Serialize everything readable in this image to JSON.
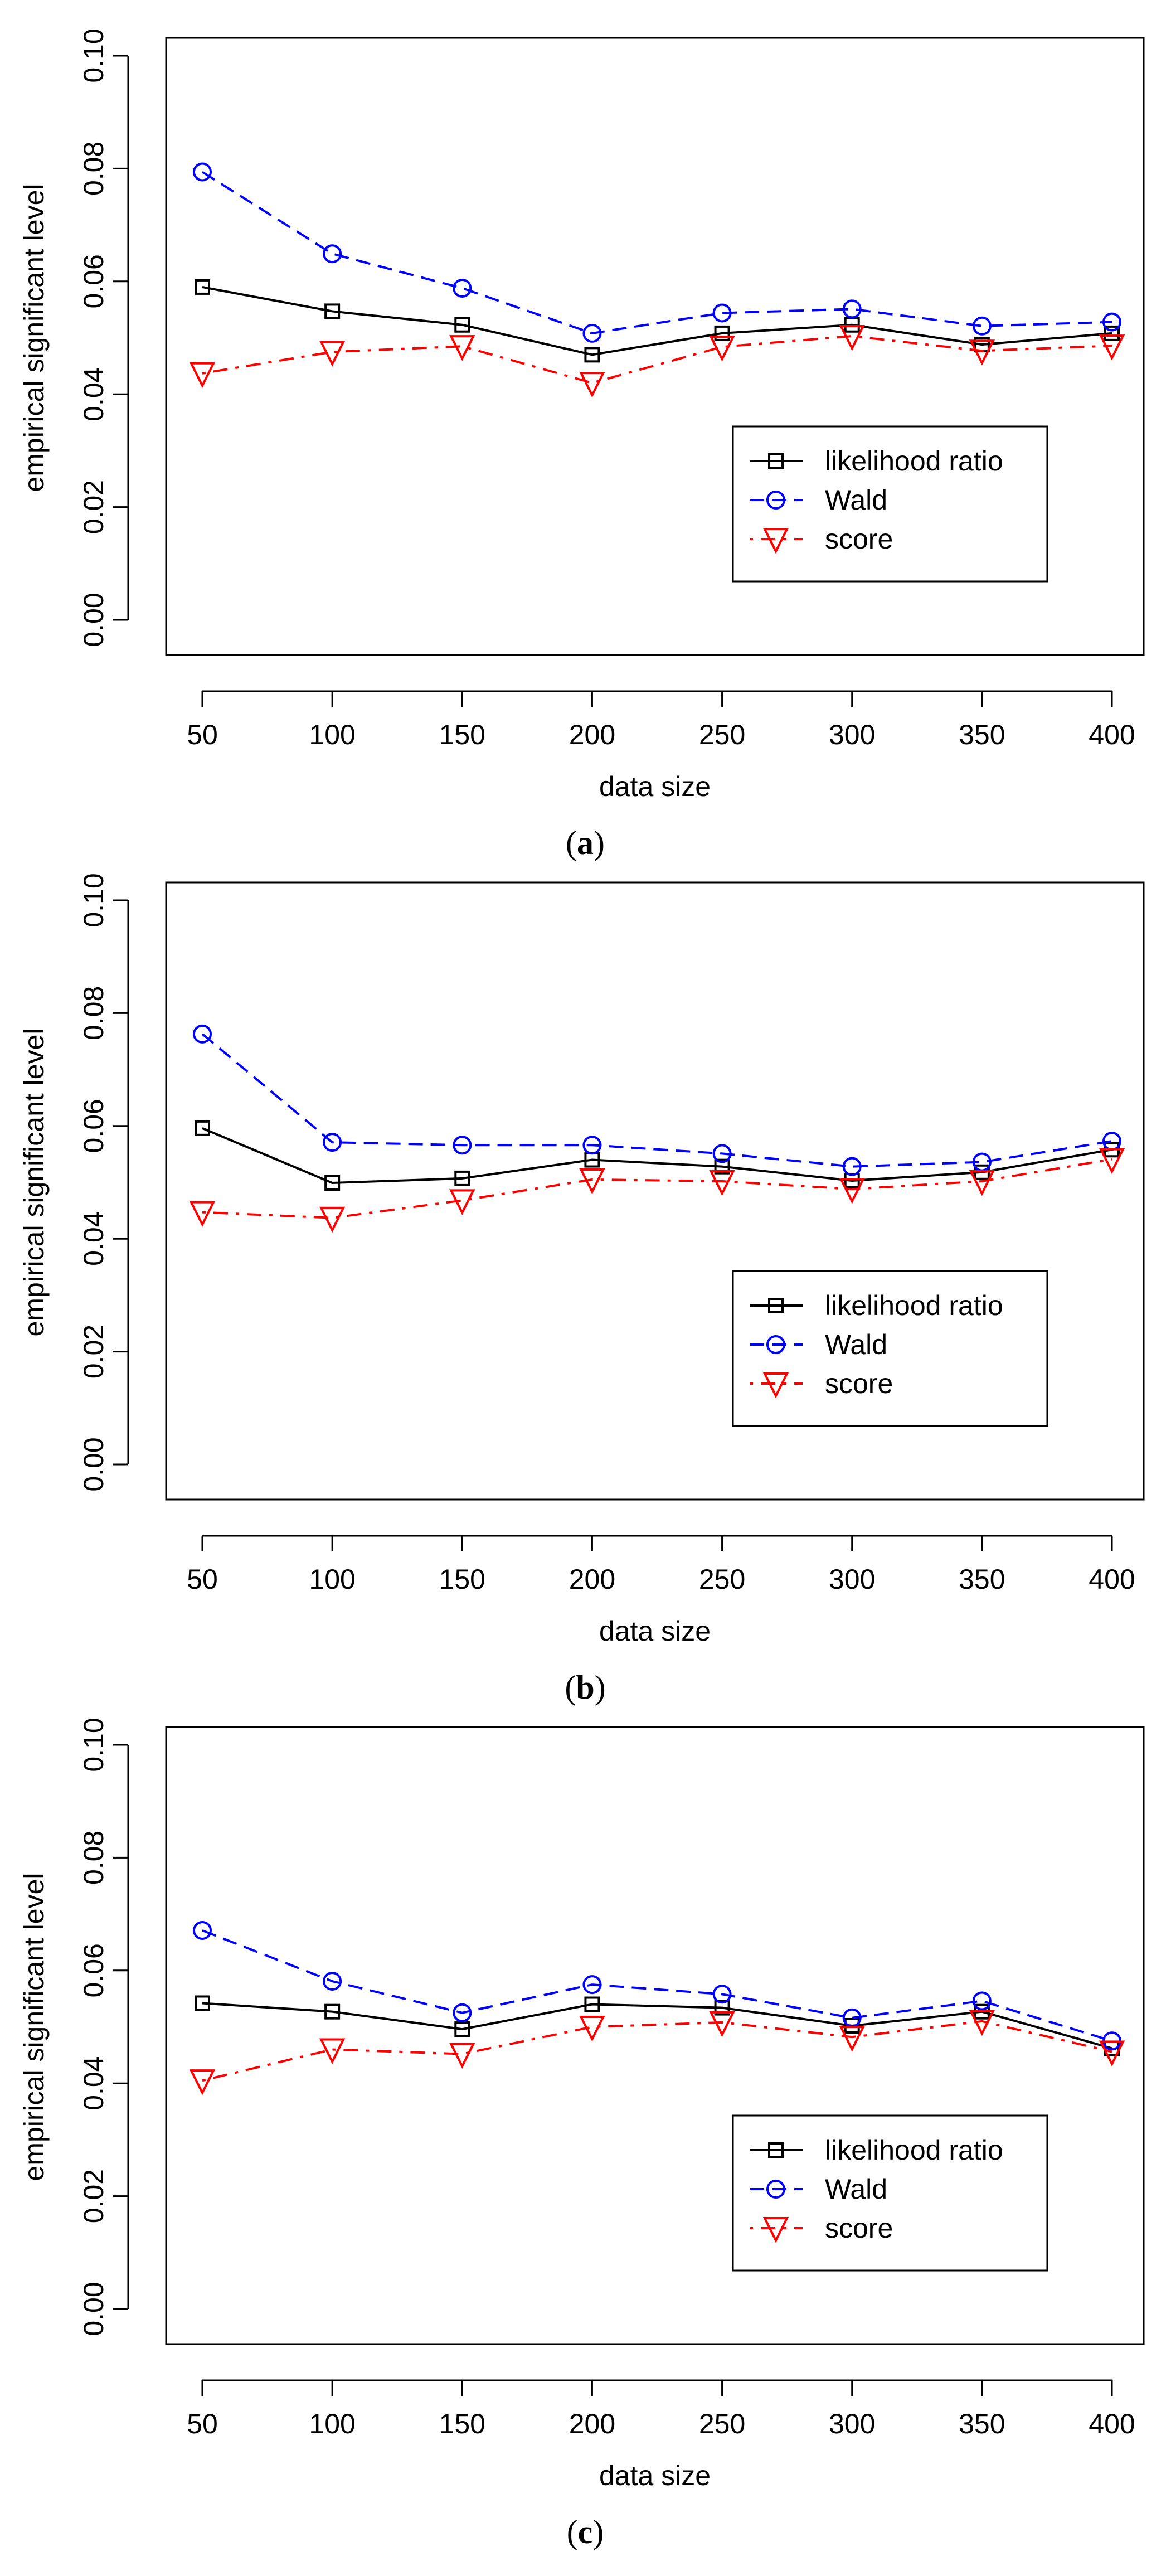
{
  "chart_data": [
    {
      "type": "line",
      "panel_label": "a",
      "xlabel": "data size",
      "ylabel": "empirical significant level",
      "x": [
        50,
        100,
        150,
        200,
        250,
        300,
        350,
        400
      ],
      "xticks": [
        "50",
        "100",
        "150",
        "200",
        "250",
        "300",
        "350",
        "400"
      ],
      "ylim": [
        0,
        0.1
      ],
      "yticks": [
        "0.00",
        "0.02",
        "0.04",
        "0.06",
        "0.08",
        "0.10"
      ],
      "grid": false,
      "legend_position": "bottom-right",
      "series": [
        {
          "name": "likelihood ratio",
          "color": "#000000",
          "marker": "square",
          "line_style": "solid",
          "values": [
            0.059,
            0.0547,
            0.0523,
            0.047,
            0.0508,
            0.0523,
            0.0488,
            0.0508
          ]
        },
        {
          "name": "Wald",
          "color": "#0000ff",
          "marker": "circle",
          "line_style": "dashed",
          "values": [
            0.0794,
            0.0649,
            0.0588,
            0.0508,
            0.0544,
            0.0551,
            0.0521,
            0.0528
          ]
        },
        {
          "name": "score",
          "color": "#ff0000",
          "marker": "triangle-down",
          "line_style": "dotdash",
          "values": [
            0.0437,
            0.0475,
            0.0485,
            0.042,
            0.0484,
            0.0503,
            0.0477,
            0.0486
          ]
        }
      ]
    },
    {
      "type": "line",
      "panel_label": "b",
      "xlabel": "data size",
      "ylabel": "empirical significant level",
      "x": [
        50,
        100,
        150,
        200,
        250,
        300,
        350,
        400
      ],
      "xticks": [
        "50",
        "100",
        "150",
        "200",
        "250",
        "300",
        "350",
        "400"
      ],
      "ylim": [
        0,
        0.1
      ],
      "yticks": [
        "0.00",
        "0.02",
        "0.04",
        "0.06",
        "0.08",
        "0.10"
      ],
      "grid": false,
      "legend_position": "bottom-right",
      "series": [
        {
          "name": "likelihood ratio",
          "color": "#000000",
          "marker": "square",
          "line_style": "solid",
          "values": [
            0.0596,
            0.0499,
            0.0507,
            0.054,
            0.0528,
            0.0503,
            0.0518,
            0.0558
          ]
        },
        {
          "name": "Wald",
          "color": "#0000ff",
          "marker": "circle",
          "line_style": "dashed",
          "values": [
            0.0763,
            0.0571,
            0.0566,
            0.0566,
            0.0551,
            0.0528,
            0.0536,
            0.0573
          ]
        },
        {
          "name": "score",
          "color": "#ff0000",
          "marker": "triangle-down",
          "line_style": "dotdash",
          "values": [
            0.0447,
            0.0437,
            0.0468,
            0.0505,
            0.0502,
            0.0488,
            0.0502,
            0.0541
          ]
        }
      ]
    },
    {
      "type": "line",
      "panel_label": "c",
      "xlabel": "data size",
      "ylabel": "empirical significant level",
      "x": [
        50,
        100,
        150,
        200,
        250,
        300,
        350,
        400
      ],
      "xticks": [
        "50",
        "100",
        "150",
        "200",
        "250",
        "300",
        "350",
        "400"
      ],
      "ylim": [
        0,
        0.1
      ],
      "yticks": [
        "0.00",
        "0.02",
        "0.04",
        "0.06",
        "0.08",
        "0.10"
      ],
      "grid": false,
      "legend_position": "bottom-right",
      "series": [
        {
          "name": "likelihood ratio",
          "color": "#000000",
          "marker": "square",
          "line_style": "solid",
          "values": [
            0.0542,
            0.0527,
            0.0496,
            0.054,
            0.0534,
            0.0502,
            0.0527,
            0.0462
          ]
        },
        {
          "name": "Wald",
          "color": "#0000ff",
          "marker": "circle",
          "line_style": "dashed",
          "values": [
            0.0671,
            0.0581,
            0.0525,
            0.0575,
            0.0558,
            0.0516,
            0.0546,
            0.0475
          ]
        },
        {
          "name": "score",
          "color": "#ff0000",
          "marker": "triangle-down",
          "line_style": "dotdash",
          "values": [
            0.0405,
            0.046,
            0.0452,
            0.05,
            0.0508,
            0.0482,
            0.051,
            0.0456
          ]
        }
      ]
    }
  ]
}
